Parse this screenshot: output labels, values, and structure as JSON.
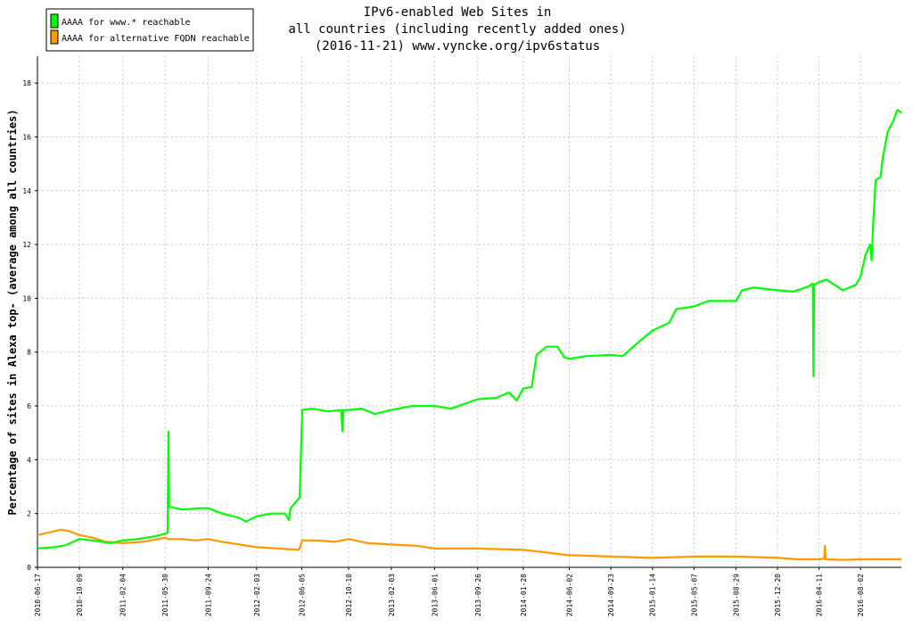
{
  "chart_data": {
    "type": "line",
    "title_lines": [
      "IPv6-enabled Web Sites in",
      "all countries (including recently added ones)",
      "(2016-11-21) www.vyncke.org/ipv6status"
    ],
    "xlabel": "",
    "ylabel": "Percentage of sites in Alexa top- (average among all countries)",
    "x_range": [
      "2010-06-17",
      "2016-11-21"
    ],
    "ylim": [
      0,
      19
    ],
    "yticks": [
      0,
      2,
      4,
      6,
      8,
      10,
      12,
      14,
      16,
      18
    ],
    "xtick_labels": [
      "2010-06-17",
      "2010-10-09",
      "2011-02-04",
      "2011-05-30",
      "2011-09-24",
      "2012-02-03",
      "2012-06-05",
      "2012-10-10",
      "2013-02-03",
      "2013-06-01",
      "2013-09-26",
      "2014-01-28",
      "2014-06-02",
      "2014-09-23",
      "2015-01-14",
      "2015-05-07",
      "2015-08-29",
      "2015-12-20",
      "2016-04-11",
      "2016-08-02"
    ],
    "grid": true,
    "legend_position": "top-left",
    "series": [
      {
        "name": "AAAA for www.* reachable",
        "color": "#00ff00",
        "points": [
          [
            "2010-06-17",
            0.7
          ],
          [
            "2010-08-01",
            0.75
          ],
          [
            "2010-09-01",
            0.82
          ],
          [
            "2010-10-09",
            1.05
          ],
          [
            "2010-11-15",
            1.0
          ],
          [
            "2011-01-01",
            0.9
          ],
          [
            "2011-02-04",
            1.0
          ],
          [
            "2011-03-15",
            1.05
          ],
          [
            "2011-05-01",
            1.15
          ],
          [
            "2011-05-30",
            1.25
          ],
          [
            "2011-06-06",
            1.3
          ],
          [
            "2011-06-08",
            5.05
          ],
          [
            "2011-06-10",
            2.25
          ],
          [
            "2011-07-15",
            2.15
          ],
          [
            "2011-09-01",
            2.2
          ],
          [
            "2011-09-24",
            2.2
          ],
          [
            "2011-11-01",
            2.0
          ],
          [
            "2011-12-15",
            1.85
          ],
          [
            "2012-01-05",
            1.7
          ],
          [
            "2012-02-03",
            1.9
          ],
          [
            "2012-03-15",
            2.0
          ],
          [
            "2012-04-20",
            2.0
          ],
          [
            "2012-05-01",
            1.75
          ],
          [
            "2012-05-05",
            2.2
          ],
          [
            "2012-05-30",
            2.6
          ],
          [
            "2012-06-06",
            5.85
          ],
          [
            "2012-07-01",
            5.9
          ],
          [
            "2012-08-15",
            5.8
          ],
          [
            "2012-09-20",
            5.85
          ],
          [
            "2012-09-23",
            5.05
          ],
          [
            "2012-09-26",
            5.85
          ],
          [
            "2012-10-10",
            5.85
          ],
          [
            "2012-11-15",
            5.9
          ],
          [
            "2012-12-20",
            5.7
          ],
          [
            "2013-02-03",
            5.85
          ],
          [
            "2013-04-01",
            6.0
          ],
          [
            "2013-06-01",
            6.0
          ],
          [
            "2013-07-15",
            5.9
          ],
          [
            "2013-09-26",
            6.25
          ],
          [
            "2013-11-15",
            6.3
          ],
          [
            "2013-12-20",
            6.5
          ],
          [
            "2014-01-10",
            6.2
          ],
          [
            "2014-01-28",
            6.65
          ],
          [
            "2014-02-20",
            6.7
          ],
          [
            "2014-03-05",
            7.9
          ],
          [
            "2014-04-01",
            8.2
          ],
          [
            "2014-05-01",
            8.2
          ],
          [
            "2014-05-20",
            7.8
          ],
          [
            "2014-06-02",
            7.75
          ],
          [
            "2014-07-15",
            7.85
          ],
          [
            "2014-09-23",
            7.9
          ],
          [
            "2014-10-25",
            7.85
          ],
          [
            "2014-12-01",
            8.3
          ],
          [
            "2015-01-14",
            8.8
          ],
          [
            "2015-03-01",
            9.1
          ],
          [
            "2015-03-20",
            9.6
          ],
          [
            "2015-05-07",
            9.7
          ],
          [
            "2015-06-15",
            9.9
          ],
          [
            "2015-08-01",
            9.9
          ],
          [
            "2015-08-29",
            9.9
          ],
          [
            "2015-09-15",
            10.3
          ],
          [
            "2015-10-15",
            10.4
          ],
          [
            "2015-12-20",
            10.3
          ],
          [
            "2016-02-01",
            10.25
          ],
          [
            "2016-03-15",
            10.45
          ],
          [
            "2016-03-25",
            10.55
          ],
          [
            "2016-03-27",
            7.1
          ],
          [
            "2016-03-29",
            10.5
          ],
          [
            "2016-04-11",
            10.6
          ],
          [
            "2016-05-01",
            10.7
          ],
          [
            "2016-06-15",
            10.3
          ],
          [
            "2016-07-20",
            10.5
          ],
          [
            "2016-08-02",
            10.8
          ],
          [
            "2016-08-15",
            11.6
          ],
          [
            "2016-08-28",
            12.0
          ],
          [
            "2016-09-01",
            11.4
          ],
          [
            "2016-09-05",
            12.7
          ],
          [
            "2016-09-12",
            14.4
          ],
          [
            "2016-09-25",
            14.5
          ],
          [
            "2016-10-01",
            15.2
          ],
          [
            "2016-10-15",
            16.2
          ],
          [
            "2016-10-30",
            16.6
          ],
          [
            "2016-11-10",
            17.0
          ],
          [
            "2016-11-21",
            16.9
          ]
        ]
      },
      {
        "name": "AAAA for alternative FQDN reachable",
        "color": "#ff9900",
        "points": [
          [
            "2010-06-17",
            1.2
          ],
          [
            "2010-07-20",
            1.3
          ],
          [
            "2010-08-20",
            1.4
          ],
          [
            "2010-09-10",
            1.35
          ],
          [
            "2010-10-09",
            1.2
          ],
          [
            "2010-11-15",
            1.1
          ],
          [
            "2010-12-20",
            0.95
          ],
          [
            "2011-02-04",
            0.9
          ],
          [
            "2011-04-01",
            0.95
          ],
          [
            "2011-05-30",
            1.1
          ],
          [
            "2011-06-08",
            1.05
          ],
          [
            "2011-07-15",
            1.05
          ],
          [
            "2011-08-20",
            1.0
          ],
          [
            "2011-09-24",
            1.05
          ],
          [
            "2011-11-01",
            0.95
          ],
          [
            "2012-02-03",
            0.75
          ],
          [
            "2012-04-01",
            0.7
          ],
          [
            "2012-05-28",
            0.65
          ],
          [
            "2012-06-06",
            1.0
          ],
          [
            "2012-07-15",
            1.0
          ],
          [
            "2012-09-01",
            0.95
          ],
          [
            "2012-10-10",
            1.05
          ],
          [
            "2012-12-01",
            0.9
          ],
          [
            "2013-02-03",
            0.85
          ],
          [
            "2013-04-15",
            0.8
          ],
          [
            "2013-06-01",
            0.7
          ],
          [
            "2013-09-26",
            0.7
          ],
          [
            "2014-01-28",
            0.65
          ],
          [
            "2014-04-01",
            0.55
          ],
          [
            "2014-06-02",
            0.45
          ],
          [
            "2014-09-23",
            0.4
          ],
          [
            "2015-01-14",
            0.35
          ],
          [
            "2015-05-07",
            0.4
          ],
          [
            "2015-08-29",
            0.4
          ],
          [
            "2015-12-20",
            0.35
          ],
          [
            "2016-02-15",
            0.3
          ],
          [
            "2016-04-11",
            0.3
          ],
          [
            "2016-04-25",
            0.32
          ],
          [
            "2016-04-27",
            0.8
          ],
          [
            "2016-04-29",
            0.3
          ],
          [
            "2016-06-15",
            0.28
          ],
          [
            "2016-08-02",
            0.3
          ],
          [
            "2016-11-21",
            0.3
          ]
        ]
      }
    ]
  }
}
